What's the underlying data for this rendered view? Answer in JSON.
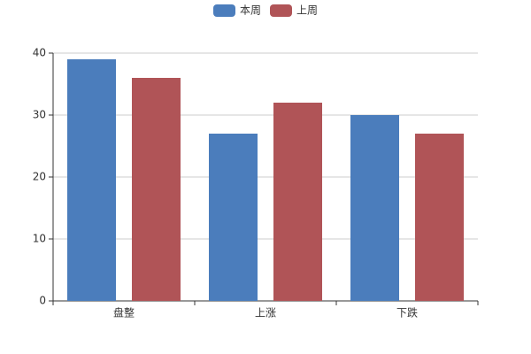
{
  "chart_data": {
    "type": "bar",
    "categories": [
      "盘整",
      "上涨",
      "下跌"
    ],
    "series": [
      {
        "name": "本周",
        "color": "#4b7dbc",
        "values": [
          39,
          27,
          30
        ]
      },
      {
        "name": "上周",
        "color": "#b05457",
        "values": [
          36,
          32,
          27
        ]
      }
    ],
    "ylim": [
      0,
      40
    ],
    "yticks": [
      0,
      10,
      20,
      30,
      40
    ],
    "grid": true,
    "legend": "top"
  }
}
